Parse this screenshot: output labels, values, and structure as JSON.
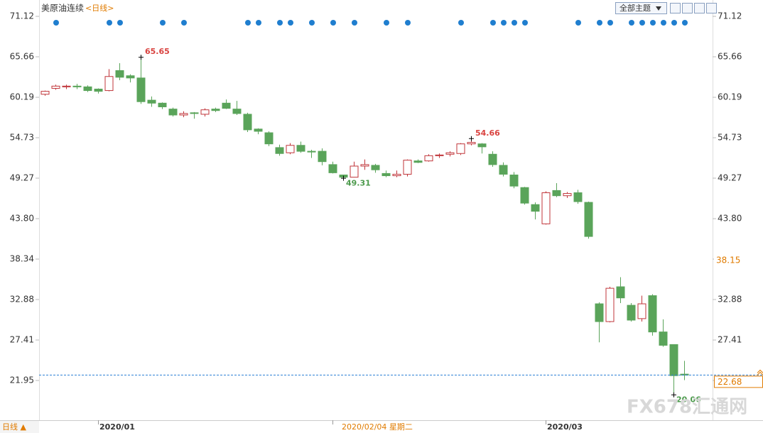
{
  "chart_data": {
    "type": "candlestick",
    "title": "美原油连续",
    "period": "<日线>",
    "theme_button": "全部主题",
    "bottom_label": "日线 ▲",
    "watermark": "FX678汇通网",
    "categories": [
      null,
      null,
      null,
      null,
      null,
      "2020/01",
      null,
      null,
      null,
      null,
      null,
      null,
      null,
      null,
      null,
      null,
      null,
      null,
      null,
      null,
      null,
      null,
      null,
      null,
      null,
      null,
      null,
      "2020/02/04 星期二",
      null,
      null,
      null,
      null,
      null,
      null,
      null,
      null,
      null,
      null,
      null,
      null,
      null,
      null,
      null,
      null,
      null,
      null,
      null,
      "2020/03",
      null,
      null,
      null,
      null,
      null,
      null,
      null,
      null,
      null,
      null,
      null,
      null,
      null
    ],
    "cursor_index": 27,
    "open": [
      60.6,
      61.4,
      61.6,
      61.7,
      61.6,
      61.3,
      61.1,
      63.8,
      63.1,
      62.8,
      59.8,
      59.4,
      58.6,
      57.8,
      58.1,
      57.9,
      58.6,
      59.4,
      58.6,
      57.9,
      55.9,
      55.4,
      53.4,
      52.7,
      53.7,
      52.9,
      52.9,
      51.1,
      49.7,
      49.4,
      50.9,
      51.0,
      49.9,
      49.6,
      49.8,
      51.6,
      51.6,
      52.3,
      52.5,
      52.6,
      53.9,
      53.9,
      52.5,
      51.0,
      49.7,
      48.0,
      45.7,
      43.1,
      47.6,
      46.9,
      47.3,
      46.0,
      32.3,
      29.9,
      34.6,
      32.1,
      30.3,
      33.4,
      28.5,
      26.8,
      22.8
    ],
    "high": [
      61.1,
      61.9,
      61.9,
      62.0,
      61.8,
      61.4,
      64.0,
      64.8,
      63.3,
      65.65,
      60.3,
      59.5,
      58.8,
      58.3,
      58.2,
      58.7,
      58.8,
      59.9,
      59.7,
      58.1,
      56.0,
      55.6,
      53.8,
      54.0,
      54.2,
      53.1,
      53.3,
      51.5,
      49.7,
      51.5,
      51.8,
      51.2,
      50.3,
      50.3,
      51.8,
      51.8,
      52.5,
      52.6,
      52.9,
      54.0,
      54.66,
      54.0,
      52.9,
      51.4,
      50.1,
      48.1,
      46.0,
      47.5,
      48.6,
      47.4,
      47.7,
      46.1,
      32.5,
      34.6,
      35.9,
      32.4,
      33.4,
      33.6,
      30.2,
      26.8,
      24.6
    ],
    "low": [
      60.4,
      61.2,
      61.3,
      61.3,
      60.9,
      60.7,
      61.0,
      62.5,
      62.2,
      59.3,
      58.9,
      58.6,
      57.6,
      57.5,
      57.3,
      57.6,
      58.2,
      58.6,
      57.8,
      55.5,
      55.2,
      53.6,
      52.3,
      52.5,
      52.7,
      52.0,
      51.0,
      49.9,
      49.31,
      49.5,
      50.4,
      50.0,
      49.4,
      49.4,
      49.5,
      51.3,
      51.5,
      52.0,
      52.2,
      52.4,
      53.7,
      52.6,
      50.8,
      49.5,
      47.9,
      45.7,
      43.7,
      43.0,
      46.7,
      46.6,
      45.8,
      41.1,
      27.1,
      29.8,
      32.4,
      29.9,
      29.9,
      28.0,
      26.5,
      20.06,
      22.0
    ],
    "close": [
      61.0,
      61.7,
      61.7,
      61.6,
      61.1,
      61.0,
      63.0,
      62.9,
      62.8,
      59.6,
      59.4,
      58.9,
      57.8,
      58.0,
      58.0,
      58.5,
      58.4,
      58.7,
      58.0,
      55.8,
      55.6,
      53.9,
      52.6,
      53.7,
      52.9,
      52.8,
      51.5,
      50.0,
      49.4,
      50.9,
      51.1,
      50.4,
      49.6,
      49.8,
      51.7,
      51.4,
      52.3,
      52.4,
      52.7,
      53.9,
      54.1,
      53.5,
      51.1,
      49.8,
      48.2,
      45.9,
      44.8,
      47.3,
      46.9,
      47.2,
      46.1,
      41.4,
      29.9,
      34.4,
      33.1,
      30.1,
      32.3,
      28.5,
      26.7,
      22.6,
      22.68
    ],
    "up_color": "#c0353a",
    "down_color": "#5aa45a",
    "high_labels": [
      9,
      40
    ],
    "low_labels": [
      28,
      59
    ],
    "events": [
      1,
      6,
      7,
      11,
      13,
      19,
      20,
      22,
      23,
      25,
      27,
      29,
      32,
      34,
      39,
      42,
      43,
      44,
      45,
      50,
      52,
      53,
      55,
      56,
      57,
      58,
      59,
      60
    ],
    "event_color": "#1f7ecf",
    "last_price": 22.68,
    "cursor_value": 38.15,
    "ylim": [
      16.58,
      72.85
    ],
    "yticks": [
      71.12,
      65.66,
      60.19,
      54.73,
      49.27,
      {
        "value": 43.8,
        "label": "43.80"
      },
      38.34,
      32.88,
      27.41,
      21.95
    ]
  }
}
